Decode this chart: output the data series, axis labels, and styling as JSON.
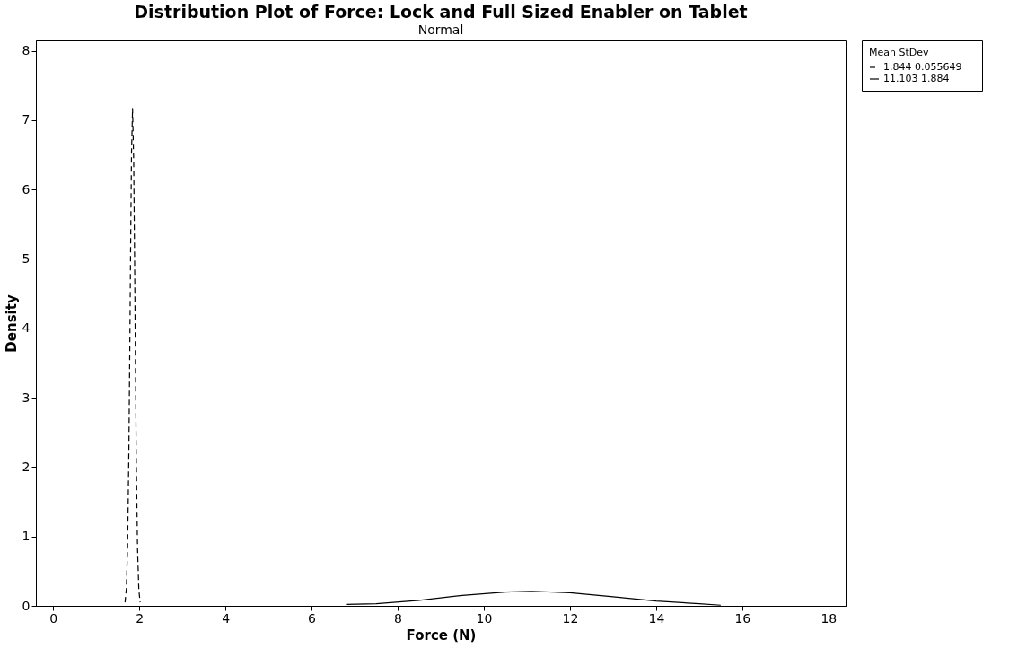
{
  "chart_data": {
    "type": "line",
    "title": "Distribution Plot of Force: Lock and Full Sized Enabler on Tablet",
    "subtitle": "Normal",
    "xlabel": "Force (N)",
    "ylabel": "Density",
    "legend_title": "Mean     StDev",
    "series": [
      {
        "name": "1.844     0.055649",
        "color": "#000000",
        "line_style": "dashed",
        "x": [
          1.67,
          1.7,
          1.73,
          1.76,
          1.78,
          1.8,
          1.82,
          1.844,
          1.87,
          1.89,
          1.91,
          1.93,
          1.96,
          1.99,
          2.02
        ],
        "values": [
          0.05,
          0.25,
          0.88,
          2.3,
          3.7,
          5.24,
          6.53,
          7.17,
          6.43,
          5.09,
          3.55,
          2.17,
          0.82,
          0.23,
          0.05
        ]
      },
      {
        "name": "11.103   1.884",
        "color": "#000000",
        "line_style": "solid",
        "x": [
          6.8,
          7.5,
          8.5,
          9.5,
          10.5,
          11.103,
          12,
          13,
          14,
          15,
          15.5
        ],
        "values": [
          0.02,
          0.03,
          0.08,
          0.15,
          0.2,
          0.21,
          0.19,
          0.13,
          0.07,
          0.03,
          0.01
        ]
      }
    ],
    "xlim": [
      -0.4,
      18.4
    ],
    "ylim": [
      0,
      8.15
    ],
    "xticks": [
      0,
      2,
      4,
      6,
      8,
      10,
      12,
      14,
      16,
      18
    ],
    "yticks": [
      0,
      1,
      2,
      3,
      4,
      5,
      6,
      7,
      8
    ],
    "grid": false,
    "legend": "right",
    "marker": "none"
  }
}
